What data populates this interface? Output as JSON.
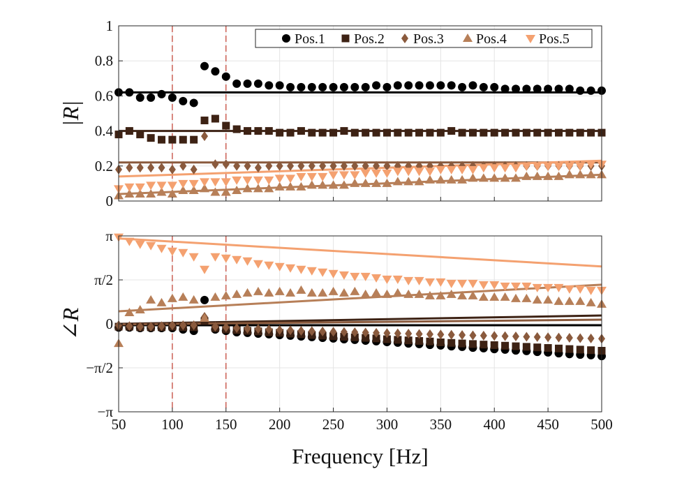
{
  "chart_data": [
    {
      "type": "scatter",
      "xlabel": "",
      "ylabel": "|R|",
      "xlim": [
        50,
        500
      ],
      "ylim": [
        0,
        1
      ],
      "yticks": [
        0,
        0.2,
        0.4,
        0.6,
        0.8,
        1
      ],
      "ytick_labels": [
        "0",
        "0.2",
        "0.4",
        "0.6",
        "0.8",
        "1"
      ],
      "grid": true,
      "legend_position": "top-right",
      "vlines": [
        100,
        150
      ],
      "x": [
        50,
        60,
        70,
        80,
        90,
        100,
        110,
        120,
        130,
        140,
        150,
        160,
        170,
        180,
        190,
        200,
        210,
        220,
        230,
        240,
        250,
        260,
        270,
        280,
        290,
        300,
        310,
        320,
        330,
        340,
        350,
        360,
        370,
        380,
        390,
        400,
        410,
        420,
        430,
        440,
        450,
        460,
        470,
        480,
        490,
        500
      ],
      "series": [
        {
          "name": "Pos.1",
          "color": "#000000",
          "marker": "circle",
          "values": [
            0.62,
            0.62,
            0.59,
            0.59,
            0.61,
            0.59,
            0.57,
            0.56,
            0.77,
            0.74,
            0.71,
            0.67,
            0.67,
            0.67,
            0.66,
            0.66,
            0.65,
            0.65,
            0.65,
            0.65,
            0.65,
            0.65,
            0.65,
            0.65,
            0.66,
            0.65,
            0.66,
            0.66,
            0.66,
            0.66,
            0.66,
            0.66,
            0.65,
            0.66,
            0.65,
            0.65,
            0.64,
            0.64,
            0.64,
            0.64,
            0.64,
            0.64,
            0.64,
            0.63,
            0.63,
            0.63
          ],
          "fit": [
            0.62,
            0.62
          ]
        },
        {
          "name": "Pos.2",
          "color": "#3d2214",
          "marker": "square",
          "values": [
            0.38,
            0.4,
            0.38,
            0.36,
            0.35,
            0.35,
            0.35,
            0.35,
            0.46,
            0.47,
            0.43,
            0.41,
            0.4,
            0.4,
            0.4,
            0.39,
            0.39,
            0.4,
            0.39,
            0.39,
            0.39,
            0.4,
            0.39,
            0.39,
            0.39,
            0.39,
            0.39,
            0.39,
            0.39,
            0.39,
            0.39,
            0.4,
            0.39,
            0.39,
            0.39,
            0.39,
            0.39,
            0.39,
            0.39,
            0.39,
            0.39,
            0.39,
            0.39,
            0.39,
            0.39,
            0.39
          ],
          "fit": [
            0.4,
            0.4
          ]
        },
        {
          "name": "Pos.3",
          "color": "#8a5a3d",
          "marker": "diamond",
          "values": [
            0.18,
            0.19,
            0.19,
            0.19,
            0.19,
            0.18,
            0.2,
            0.18,
            0.37,
            0.21,
            0.21,
            0.2,
            0.2,
            0.19,
            0.2,
            0.2,
            0.2,
            0.2,
            0.2,
            0.2,
            0.2,
            0.2,
            0.2,
            0.2,
            0.2,
            0.2,
            0.2,
            0.2,
            0.2,
            0.2,
            0.2,
            0.2,
            0.2,
            0.2,
            0.2,
            0.2,
            0.2,
            0.2,
            0.2,
            0.2,
            0.2,
            0.2,
            0.2,
            0.2,
            0.2,
            0.2
          ],
          "fit": [
            0.22,
            0.22
          ]
        },
        {
          "name": "Pos.4",
          "color": "#b77f58",
          "marker": "triangle-up",
          "values": [
            0.03,
            0.04,
            0.04,
            0.04,
            0.05,
            0.04,
            0.06,
            0.06,
            0.07,
            0.05,
            0.05,
            0.06,
            0.07,
            0.07,
            0.07,
            0.08,
            0.08,
            0.08,
            0.09,
            0.09,
            0.09,
            0.09,
            0.1,
            0.1,
            0.1,
            0.1,
            0.11,
            0.11,
            0.11,
            0.12,
            0.12,
            0.12,
            0.12,
            0.13,
            0.13,
            0.13,
            0.13,
            0.13,
            0.14,
            0.14,
            0.14,
            0.14,
            0.15,
            0.15,
            0.15,
            0.15
          ],
          "fit": [
            0.04,
            0.15
          ]
        },
        {
          "name": "Pos.5",
          "color": "#f4a170",
          "marker": "triangle-down",
          "values": [
            0.07,
            0.08,
            0.08,
            0.09,
            0.09,
            0.09,
            0.1,
            0.1,
            0.11,
            0.11,
            0.11,
            0.12,
            0.12,
            0.12,
            0.12,
            0.13,
            0.13,
            0.14,
            0.14,
            0.14,
            0.15,
            0.15,
            0.15,
            0.16,
            0.16,
            0.16,
            0.17,
            0.17,
            0.17,
            0.17,
            0.18,
            0.18,
            0.18,
            0.18,
            0.19,
            0.19,
            0.19,
            0.19,
            0.2,
            0.2,
            0.2,
            0.2,
            0.2,
            0.2,
            0.21,
            0.21
          ],
          "fit": [
            0.14,
            0.23
          ]
        }
      ]
    },
    {
      "type": "scatter",
      "xlabel": "Frequency [Hz]",
      "ylabel": "∠R",
      "xlim": [
        50,
        500
      ],
      "ylim": [
        -3.1416,
        3.1416
      ],
      "yticks": [
        -3.1416,
        -1.5708,
        0,
        1.5708,
        3.1416
      ],
      "ytick_labels": [
        "−π",
        "−π/2",
        "0",
        "π/2",
        "π"
      ],
      "xticks": [
        50,
        100,
        150,
        200,
        250,
        300,
        350,
        400,
        450,
        500
      ],
      "xtick_labels": [
        "50",
        "100",
        "150",
        "200",
        "250",
        "300",
        "350",
        "400",
        "450",
        "500"
      ],
      "grid": true,
      "vlines": [
        100,
        150
      ],
      "x": [
        50,
        60,
        70,
        80,
        90,
        100,
        110,
        120,
        130,
        140,
        150,
        160,
        170,
        180,
        190,
        200,
        210,
        220,
        230,
        240,
        250,
        260,
        270,
        280,
        290,
        300,
        310,
        320,
        330,
        340,
        350,
        360,
        370,
        380,
        390,
        400,
        410,
        420,
        430,
        440,
        450,
        460,
        470,
        480,
        490,
        500
      ],
      "series": [
        {
          "name": "Pos.1",
          "color": "#000000",
          "marker": "circle",
          "values": [
            -0.13,
            -0.13,
            -0.15,
            -0.15,
            -0.15,
            -0.15,
            -0.2,
            -0.25,
            0.85,
            -0.2,
            -0.25,
            -0.3,
            -0.32,
            -0.35,
            -0.37,
            -0.4,
            -0.42,
            -0.45,
            -0.47,
            -0.5,
            -0.52,
            -0.55,
            -0.57,
            -0.6,
            -0.62,
            -0.65,
            -0.67,
            -0.7,
            -0.72,
            -0.75,
            -0.77,
            -0.8,
            -0.82,
            -0.85,
            -0.87,
            -0.9,
            -0.92,
            -0.95,
            -0.97,
            -1.0,
            -1.02,
            -1.05,
            -1.08,
            -1.1,
            -1.12,
            -1.15
          ],
          "fit": [
            -0.05,
            -0.05
          ]
        },
        {
          "name": "Pos.2",
          "color": "#3d2214",
          "marker": "square",
          "values": [
            -0.1,
            -0.1,
            -0.12,
            -0.12,
            -0.12,
            -0.1,
            -0.12,
            -0.12,
            0.1,
            -0.15,
            -0.2,
            -0.22,
            -0.25,
            -0.27,
            -0.3,
            -0.32,
            -0.35,
            -0.37,
            -0.4,
            -0.42,
            -0.44,
            -0.46,
            -0.48,
            -0.5,
            -0.52,
            -0.55,
            -0.57,
            -0.59,
            -0.61,
            -0.63,
            -0.66,
            -0.68,
            -0.7,
            -0.72,
            -0.74,
            -0.76,
            -0.78,
            -0.8,
            -0.82,
            -0.84,
            -0.86,
            -0.88,
            -0.9,
            -0.92,
            -0.94,
            -0.96
          ],
          "fit": [
            0.0,
            0.3
          ]
        },
        {
          "name": "Pos.3",
          "color": "#8a5a3d",
          "marker": "diamond",
          "values": [
            -0.05,
            -0.08,
            -0.1,
            -0.1,
            -0.08,
            -0.05,
            -0.05,
            -0.05,
            0.25,
            -0.1,
            -0.12,
            -0.15,
            -0.17,
            -0.18,
            -0.2,
            -0.22,
            -0.23,
            -0.25,
            -0.26,
            -0.27,
            -0.28,
            -0.29,
            -0.3,
            -0.31,
            -0.32,
            -0.33,
            -0.34,
            -0.35,
            -0.36,
            -0.37,
            -0.38,
            -0.39,
            -0.4,
            -0.41,
            -0.42,
            -0.43,
            -0.44,
            -0.45,
            -0.46,
            -0.47,
            -0.48,
            -0.49,
            -0.5,
            -0.51,
            -0.52,
            -0.53
          ],
          "fit": [
            -0.02,
            0.15
          ]
        },
        {
          "name": "Pos.4",
          "color": "#b77f58",
          "marker": "triangle-up",
          "values": [
            -0.7,
            0.4,
            0.5,
            0.85,
            0.75,
            0.9,
            0.95,
            0.85,
            0.2,
            0.95,
            1.0,
            1.05,
            1.1,
            1.15,
            1.1,
            1.15,
            1.1,
            1.2,
            1.1,
            1.1,
            1.15,
            1.1,
            1.15,
            1.05,
            1.1,
            1.05,
            1.1,
            1.05,
            1.05,
            1.0,
            1.0,
            1.05,
            1.0,
            1.0,
            0.95,
            0.95,
            0.95,
            0.9,
            0.9,
            0.85,
            0.85,
            0.8,
            0.8,
            0.8,
            0.75,
            0.7
          ],
          "fit": [
            0.45,
            1.4
          ]
        },
        {
          "name": "Pos.5",
          "color": "#f4a170",
          "marker": "triangle-down",
          "values": [
            3.1,
            2.95,
            2.85,
            2.8,
            2.7,
            2.6,
            2.55,
            2.4,
            1.95,
            2.4,
            2.35,
            2.3,
            2.25,
            2.15,
            2.1,
            2.05,
            2.0,
            1.95,
            1.9,
            1.85,
            1.8,
            1.75,
            1.7,
            1.7,
            1.65,
            1.6,
            1.6,
            1.55,
            1.55,
            1.5,
            1.5,
            1.45,
            1.45,
            1.45,
            1.4,
            1.4,
            1.35,
            1.35,
            1.35,
            1.3,
            1.3,
            1.3,
            1.25,
            1.25,
            1.2,
            1.2
          ],
          "fit": [
            3.05,
            2.05
          ]
        }
      ]
    }
  ]
}
